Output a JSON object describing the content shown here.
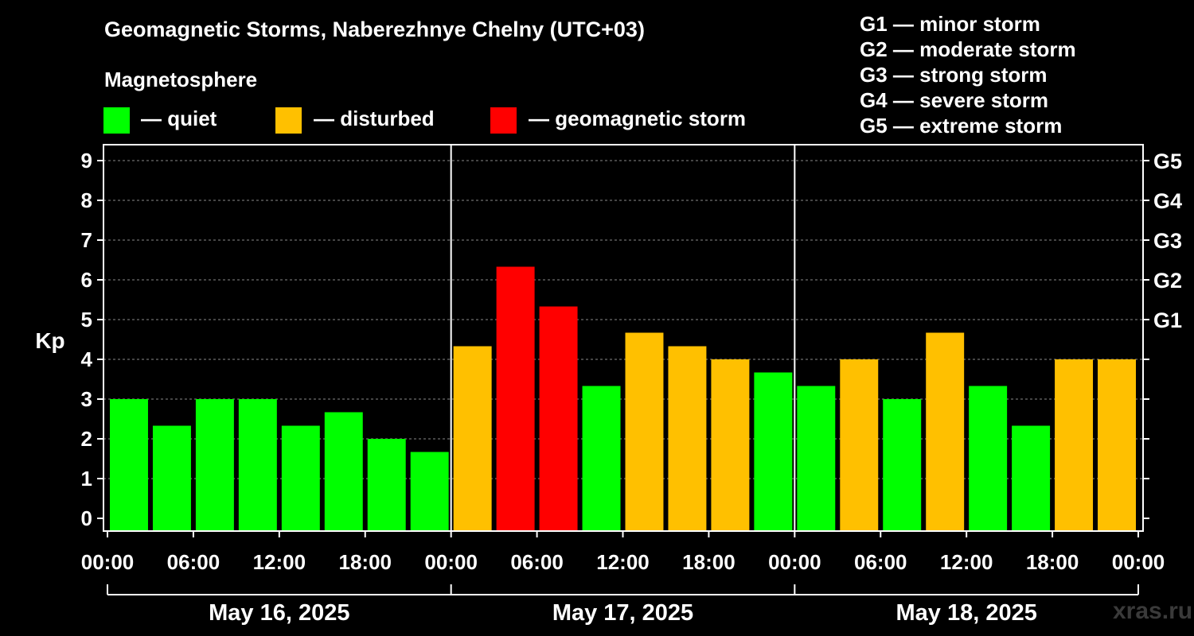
{
  "title": "Geomagnetic Storms, Naberezhnye Chelny (UTC+03)",
  "subtitle": "Magnetosphere",
  "legend": [
    {
      "label": "— quiet",
      "color": "#00ff00"
    },
    {
      "label": "— disturbed",
      "color": "#ffc000"
    },
    {
      "label": "— geomagnetic storm",
      "color": "#ff0000"
    }
  ],
  "gscale": [
    "G1 — minor storm",
    "G2 — moderate storm",
    "G3 — strong storm",
    "G4 — severe storm",
    "G5 — extreme storm"
  ],
  "watermark": "xras.ru",
  "chart_data": {
    "type": "bar",
    "ylabel": "Kp",
    "ylim": [
      0,
      9
    ],
    "yticks": [
      "0",
      "1",
      "2",
      "3",
      "4",
      "5",
      "6",
      "7",
      "8",
      "9"
    ],
    "right_ticks": [
      {
        "value": 5,
        "label": "G1"
      },
      {
        "value": 6,
        "label": "G2"
      },
      {
        "value": 7,
        "label": "G3"
      },
      {
        "value": 8,
        "label": "G4"
      },
      {
        "value": 9,
        "label": "G5"
      }
    ],
    "xticks": [
      "00:00",
      "06:00",
      "12:00",
      "18:00",
      "00:00",
      "06:00",
      "12:00",
      "18:00",
      "00:00",
      "06:00",
      "12:00",
      "18:00",
      "00:00"
    ],
    "days": [
      "May 16, 2025",
      "May 17, 2025",
      "May 18, 2025"
    ],
    "bar_interval_hours": 3,
    "colors": {
      "quiet": "#00ff00",
      "disturbed": "#ffc000",
      "storm": "#ff0000"
    },
    "values": [
      3.0,
      2.33,
      3.0,
      3.0,
      2.33,
      2.67,
      2.0,
      1.67,
      4.33,
      6.33,
      5.33,
      3.33,
      4.67,
      4.33,
      4.0,
      3.67,
      3.33,
      4.0,
      3.0,
      4.67,
      3.33,
      2.33,
      4.0,
      4.0
    ],
    "status": [
      "quiet",
      "quiet",
      "quiet",
      "quiet",
      "quiet",
      "quiet",
      "quiet",
      "quiet",
      "disturbed",
      "storm",
      "storm",
      "quiet",
      "disturbed",
      "disturbed",
      "disturbed",
      "quiet",
      "quiet",
      "disturbed",
      "quiet",
      "disturbed",
      "quiet",
      "quiet",
      "disturbed",
      "disturbed"
    ],
    "grid": true
  }
}
